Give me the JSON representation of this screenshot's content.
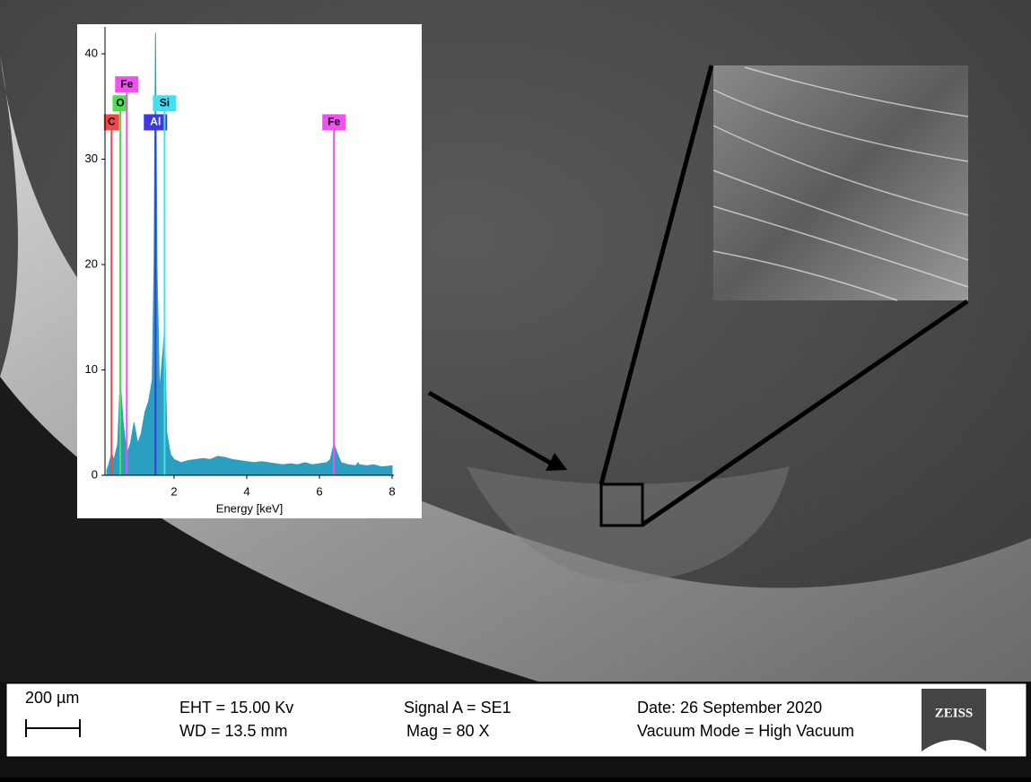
{
  "chart_data": {
    "type": "area",
    "x_label": "Energy [keV]",
    "x": [
      0.15,
      0.2,
      0.28,
      0.35,
      0.45,
      0.52,
      0.6,
      0.7,
      0.8,
      0.9,
      1.0,
      1.1,
      1.2,
      1.3,
      1.4,
      1.45,
      1.49,
      1.53,
      1.6,
      1.7,
      1.74,
      1.8,
      1.9,
      2.0,
      2.2,
      2.4,
      2.6,
      2.8,
      3.0,
      3.2,
      3.4,
      3.6,
      3.8,
      4.0,
      4.2,
      4.4,
      4.6,
      4.8,
      5.0,
      5.2,
      5.4,
      5.6,
      5.8,
      6.0,
      6.2,
      6.3,
      6.4,
      6.5,
      6.6,
      6.8,
      7.0,
      7.06,
      7.1,
      7.3,
      7.5,
      7.7,
      8.0
    ],
    "values": [
      0.5,
      1,
      2,
      1.5,
      3,
      9,
      5,
      2,
      3,
      5,
      3,
      4,
      6,
      7,
      9,
      20,
      42,
      20,
      8,
      12,
      14,
      4,
      2,
      1.5,
      1.2,
      1.4,
      1.5,
      1.6,
      1.5,
      1.8,
      1.7,
      1.5,
      1.4,
      1.3,
      1.2,
      1.3,
      1.2,
      1.1,
      1.0,
      1.1,
      1.0,
      1.2,
      1.0,
      1.1,
      1.2,
      1.5,
      3,
      2,
      1.2,
      1.0,
      0.9,
      1.2,
      1.0,
      0.9,
      1.0,
      0.8,
      0.9
    ],
    "color": "#2a9fc0",
    "xlim": [
      0.1,
      8.05
    ],
    "xticks": [
      2,
      4,
      6,
      8
    ],
    "ylim": [
      0,
      42.3
    ],
    "yticks": [
      0,
      10,
      20,
      30,
      40
    ],
    "markers": [
      {
        "label": "C",
        "energy": 0.28,
        "level": 33.5,
        "color": "#f04848"
      },
      {
        "label": "O",
        "energy": 0.52,
        "level": 35.3,
        "color": "#4ce04c"
      },
      {
        "label": "Fe",
        "energy": 0.7,
        "level": 37.1,
        "color": "#f050f0"
      },
      {
        "label": "Al",
        "energy": 1.49,
        "level": 33.5,
        "color": "#3a3ae0"
      },
      {
        "label": "Si",
        "energy": 1.74,
        "level": 35.3,
        "color": "#40e0f0"
      },
      {
        "label": "Fe",
        "energy": 6.4,
        "level": 33.5,
        "color": "#f050f0"
      }
    ]
  },
  "info_bar": {
    "scale_bar": "200 µm",
    "eht": "EHT = 15.00 Kv",
    "wd": "WD = 13.5 mm",
    "signal": "Signal A = SE1",
    "mag": "Mag = 80 X",
    "date": "Date: 26 September  2020",
    "vacuum": "Vacuum Mode = High Vacuum",
    "logo": "ZEISS"
  }
}
